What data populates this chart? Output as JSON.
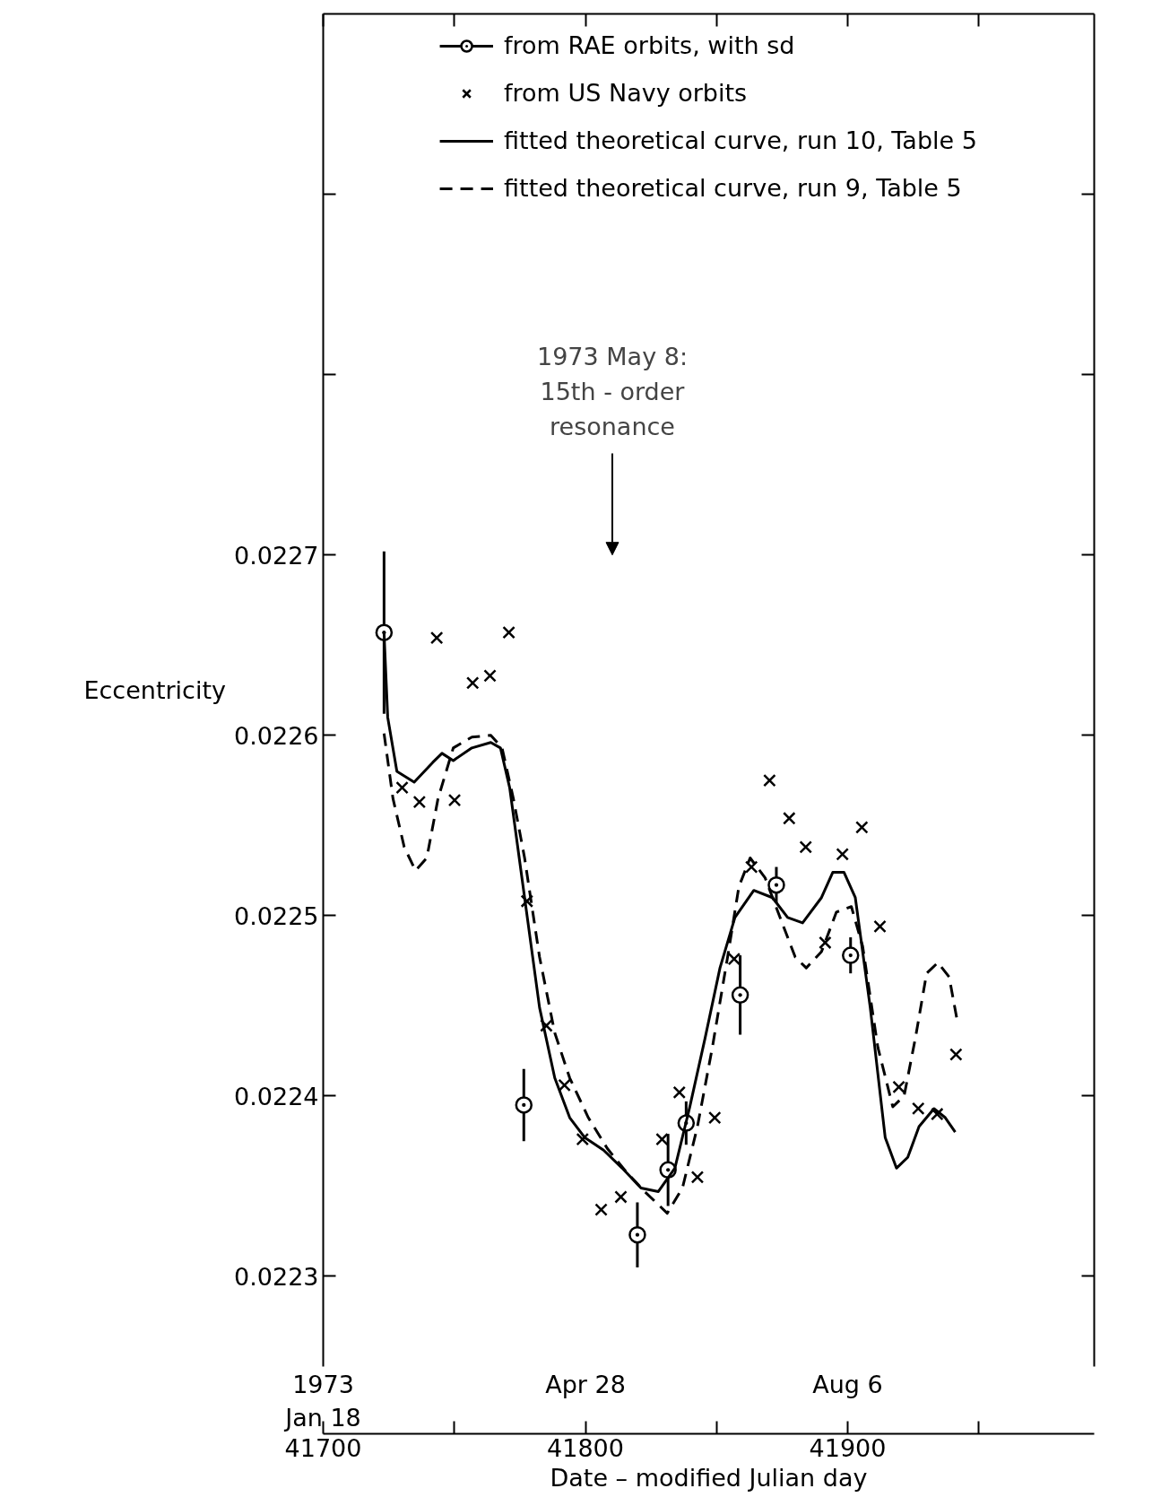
{
  "chart_data": {
    "type": "scatter",
    "xlabel": "Date – modified Julian day",
    "ylabel": "Eccentricity",
    "xlim": [
      41700,
      41994
    ],
    "ylim": [
      0.02225,
      0.023
    ],
    "x2lim": [
      "1973-01-18",
      "1973-11-08"
    ],
    "xticks": [
      41700,
      {
        "value": 41750,
        "label": null
      },
      41800,
      {
        "value": 41850,
        "label": null
      },
      41900,
      {
        "value": 41950,
        "label": null
      }
    ],
    "x2ticks": [
      {
        "value": "1973-01-18",
        "label": "1973\nJan 18"
      },
      {
        "value": "1973-04-28",
        "label": "Apr 28"
      },
      {
        "value": "1973-08-06",
        "label": "Aug 6"
      }
    ],
    "yticks": [
      0.0223,
      0.0224,
      0.0225,
      0.0226,
      0.0227,
      {
        "value": 0.0228,
        "label": null
      },
      {
        "value": 0.0229,
        "label": null
      }
    ],
    "legend": "top",
    "annotations": [
      "1973 May 8:\n15th - order\nresonance"
    ],
    "series": [
      {
        "name": "from RAE orbits, with sd",
        "marker": "circle",
        "color": "#000000",
        "x": [
          41723.2,
          41776.5,
          41819.8,
          41831.5,
          41838.4,
          41859.0,
          41872.8,
          41901.1
        ],
        "values": [
          0.022657,
          0.022395,
          0.022323,
          0.022359,
          0.022385,
          0.022456,
          0.022517,
          0.022478
        ],
        "errors": [
          4.5e-05,
          2e-05,
          1.8e-05,
          2e-05,
          1.2e-05,
          2.2e-05,
          1e-05,
          1e-05
        ]
      },
      {
        "name": "from US Navy orbits",
        "marker": "cross",
        "color": "#000000",
        "x": [
          41730.1,
          41736.7,
          41743.3,
          41750.1,
          41757.0,
          41763.6,
          41770.8,
          41777.7,
          41785.1,
          41792.0,
          41798.9,
          41806.0,
          41813.5,
          41829.2,
          41835.8,
          41842.7,
          41849.3,
          41856.7,
          41863.3,
          41870.2,
          41877.7,
          41884.0,
          41891.4,
          41898.0,
          41905.4,
          41912.3,
          41919.5,
          41926.9,
          41934.1,
          41941.3
        ],
        "values": [
          0.022571,
          0.022563,
          0.022654,
          0.022564,
          0.022629,
          0.022633,
          0.022657,
          0.022508,
          0.022439,
          0.022406,
          0.022376,
          0.022337,
          0.022344,
          0.022376,
          0.022402,
          0.022355,
          0.022388,
          0.022476,
          0.022527,
          0.022575,
          0.022554,
          0.022538,
          0.022485,
          0.022534,
          0.022549,
          0.022494,
          0.022405,
          0.022393,
          0.02239,
          0.022423
        ]
      },
      {
        "name": "fitted theoretical curve, run 10, Table 5",
        "type": "line",
        "line_style": "solid",
        "color": "#000000",
        "x": [
          41723.2,
          41724.6,
          41728.1,
          41734.7,
          41741.8,
          41745.3,
          41749.6,
          41756.7,
          41763.9,
          41767.6,
          41771.1,
          41776.8,
          41782.5,
          41788.3,
          41794.0,
          41799.7,
          41806.9,
          41814.0,
          41821.2,
          41827.8,
          41834.1,
          41839.8,
          41845.6,
          41851.3,
          41857.0,
          41864.2,
          41871.3,
          41877.1,
          41882.8,
          41890.0,
          41894.3,
          41898.6,
          41902.9,
          41908.6,
          41914.3,
          41918.6,
          41922.9,
          41927.2,
          41932.9,
          41937.2,
          41941.0
        ],
        "values": [
          0.022657,
          0.02261,
          0.02258,
          0.022574,
          0.022585,
          0.02259,
          0.022586,
          0.022593,
          0.022596,
          0.022593,
          0.022571,
          0.02251,
          0.022449,
          0.02241,
          0.022388,
          0.022377,
          0.02237,
          0.02236,
          0.022349,
          0.022347,
          0.02236,
          0.022394,
          0.022432,
          0.022471,
          0.022499,
          0.022514,
          0.02251,
          0.022499,
          0.022496,
          0.02251,
          0.022524,
          0.022524,
          0.02251,
          0.022449,
          0.022377,
          0.02236,
          0.022366,
          0.022383,
          0.022393,
          0.022388,
          0.02238
        ]
      },
      {
        "name": "fitted theoretical curve, run 9, Table 5",
        "type": "line",
        "line_style": "dashed",
        "color": "#000000",
        "x": [
          41723.2,
          41726.6,
          41730.9,
          41735.2,
          41739.5,
          41743.8,
          41749.6,
          41756.7,
          41763.9,
          41768.2,
          41772.5,
          41776.8,
          41782.5,
          41788.3,
          41794.0,
          41801.1,
          41808.3,
          41815.5,
          41822.6,
          41831.2,
          41837.0,
          41842.7,
          41848.4,
          41854.2,
          41858.5,
          41862.8,
          41868.5,
          41874.2,
          41880.0,
          41884.2,
          41890.0,
          41895.7,
          41901.4,
          41905.7,
          41911.5,
          41917.2,
          41921.5,
          41925.8,
          41930.1,
          41934.4,
          41938.7,
          41941.6
        ],
        "values": [
          0.022601,
          0.022565,
          0.022538,
          0.022525,
          0.022532,
          0.022565,
          0.022593,
          0.022599,
          0.0226,
          0.022593,
          0.022565,
          0.022532,
          0.022477,
          0.022435,
          0.02241,
          0.022388,
          0.022371,
          0.022358,
          0.022347,
          0.022335,
          0.022349,
          0.022383,
          0.022427,
          0.022477,
          0.022516,
          0.022532,
          0.022521,
          0.022499,
          0.022477,
          0.022471,
          0.02248,
          0.022502,
          0.022505,
          0.022483,
          0.022427,
          0.022394,
          0.0224,
          0.022432,
          0.022468,
          0.022474,
          0.022466,
          0.022443
        ]
      }
    ]
  }
}
